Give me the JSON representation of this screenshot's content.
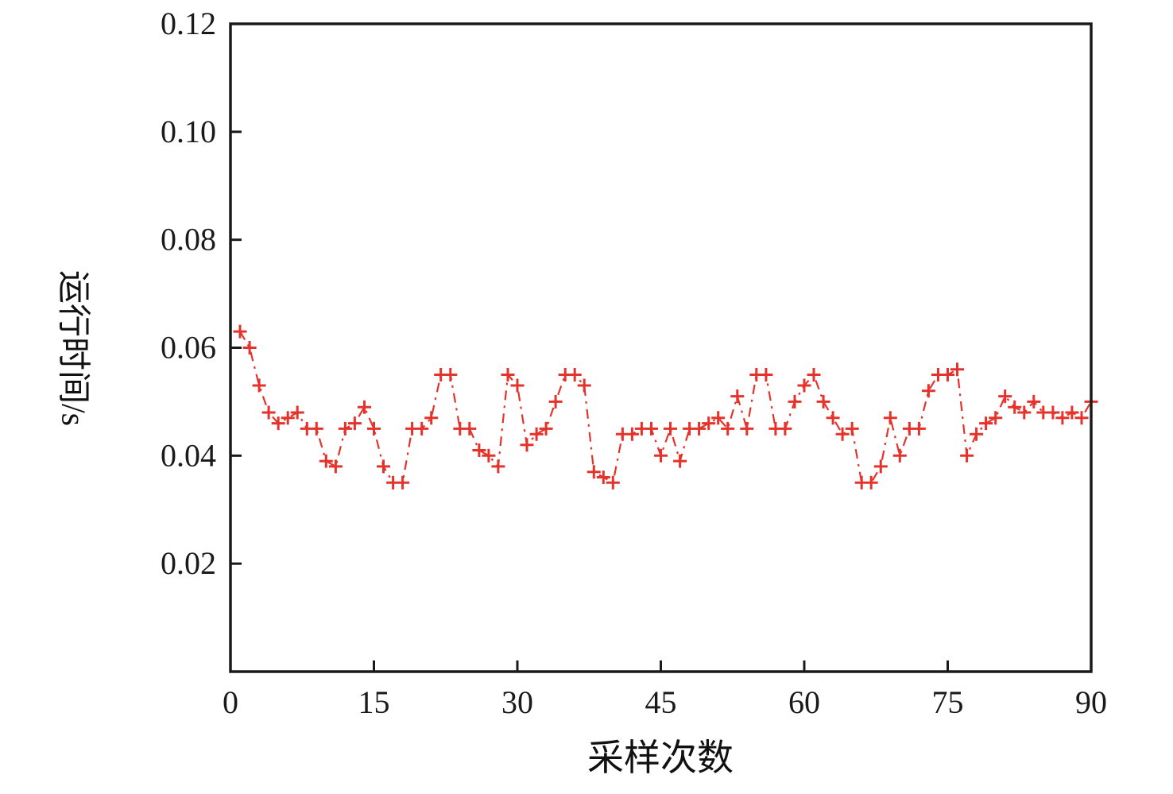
{
  "chart_data": {
    "type": "line",
    "title": "",
    "xlabel": "采样次数",
    "ylabel": "运行时间/s",
    "xlim": [
      0,
      90
    ],
    "ylim": [
      0,
      0.12
    ],
    "xticks": [
      0,
      15,
      30,
      45,
      60,
      75,
      90
    ],
    "yticks": [
      0.02,
      0.04,
      0.06,
      0.08,
      0.1,
      0.12
    ],
    "grid": false,
    "legend_position": "none",
    "line_color": "#e5332c",
    "axis_color": "#1a1a1a",
    "line_style": "dash-dot",
    "marker": "plus",
    "series": [
      {
        "name": "运行时间",
        "x": [
          1,
          2,
          3,
          4,
          5,
          6,
          7,
          8,
          9,
          10,
          11,
          12,
          13,
          14,
          15,
          16,
          17,
          18,
          19,
          20,
          21,
          22,
          23,
          24,
          25,
          26,
          27,
          28,
          29,
          30,
          31,
          32,
          33,
          34,
          35,
          36,
          37,
          38,
          39,
          40,
          41,
          42,
          43,
          44,
          45,
          46,
          47,
          48,
          49,
          50,
          51,
          52,
          53,
          54,
          55,
          56,
          57,
          58,
          59,
          60,
          61,
          62,
          63,
          64,
          65,
          66,
          67,
          68,
          69,
          70,
          71,
          72,
          73,
          74,
          75,
          76,
          77,
          78,
          79,
          80,
          81,
          82,
          83,
          84,
          85,
          86,
          87,
          88,
          89,
          90
        ],
        "y": [
          0.063,
          0.06,
          0.053,
          0.048,
          0.046,
          0.047,
          0.048,
          0.045,
          0.045,
          0.039,
          0.038,
          0.045,
          0.046,
          0.049,
          0.045,
          0.038,
          0.035,
          0.035,
          0.045,
          0.045,
          0.047,
          0.055,
          0.055,
          0.045,
          0.045,
          0.041,
          0.04,
          0.038,
          0.055,
          0.053,
          0.042,
          0.044,
          0.045,
          0.05,
          0.055,
          0.055,
          0.053,
          0.037,
          0.036,
          0.035,
          0.044,
          0.044,
          0.045,
          0.045,
          0.04,
          0.045,
          0.039,
          0.045,
          0.045,
          0.046,
          0.047,
          0.045,
          0.051,
          0.045,
          0.055,
          0.055,
          0.045,
          0.045,
          0.05,
          0.053,
          0.055,
          0.05,
          0.047,
          0.044,
          0.045,
          0.035,
          0.035,
          0.038,
          0.047,
          0.04,
          0.045,
          0.045,
          0.052,
          0.055,
          0.055,
          0.056,
          0.04,
          0.044,
          0.046,
          0.047,
          0.051,
          0.049,
          0.048,
          0.05,
          0.048,
          0.048,
          0.047,
          0.048,
          0.047,
          0.05
        ]
      }
    ]
  }
}
